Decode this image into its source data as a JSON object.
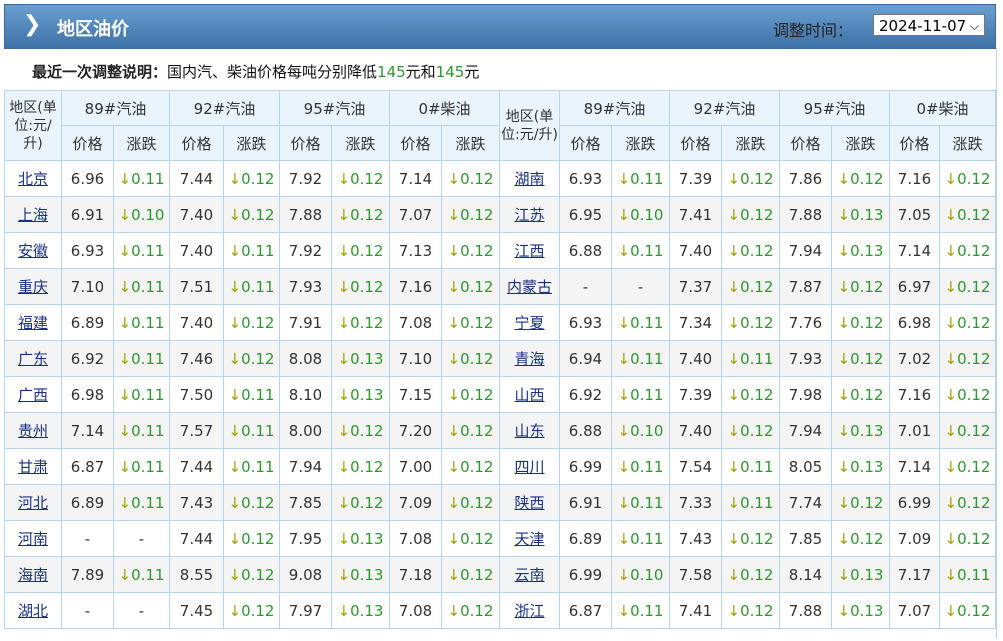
{
  "header": {
    "title": "地区油价",
    "time_label": "调整时间：",
    "date": "2024-11-07"
  },
  "note": {
    "label": "最近一次调整说明：",
    "text1": "国内汽、柴油价格每吨分别降低",
    "gas": "145",
    "text2": "元和",
    "diesel": "145",
    "text3": "元"
  },
  "columns": {
    "region": "地区(单位:元/升)",
    "fuels": [
      "89#汽油",
      "92#汽油",
      "95#汽油",
      "0#柴油"
    ],
    "price": "价格",
    "change": "涨跌"
  },
  "change_arrow": "↓",
  "colors": {
    "header": "#4f84b9",
    "up_down_text": "#2a9a2a",
    "border": "#b8d4ea"
  },
  "rows_left": [
    {
      "city": "北京",
      "v": [
        "6.96",
        "0.11",
        "7.44",
        "0.12",
        "7.92",
        "0.12",
        "7.14",
        "0.12"
      ]
    },
    {
      "city": "上海",
      "v": [
        "6.91",
        "0.10",
        "7.40",
        "0.12",
        "7.88",
        "0.12",
        "7.07",
        "0.12"
      ]
    },
    {
      "city": "安徽",
      "v": [
        "6.93",
        "0.11",
        "7.40",
        "0.11",
        "7.92",
        "0.12",
        "7.13",
        "0.12"
      ]
    },
    {
      "city": "重庆",
      "v": [
        "7.10",
        "0.11",
        "7.51",
        "0.11",
        "7.93",
        "0.12",
        "7.16",
        "0.12"
      ]
    },
    {
      "city": "福建",
      "v": [
        "6.89",
        "0.11",
        "7.40",
        "0.12",
        "7.91",
        "0.12",
        "7.08",
        "0.12"
      ]
    },
    {
      "city": "广东",
      "v": [
        "6.92",
        "0.11",
        "7.46",
        "0.12",
        "8.08",
        "0.13",
        "7.10",
        "0.12"
      ]
    },
    {
      "city": "广西",
      "v": [
        "6.98",
        "0.11",
        "7.50",
        "0.11",
        "8.10",
        "0.13",
        "7.15",
        "0.12"
      ]
    },
    {
      "city": "贵州",
      "v": [
        "7.14",
        "0.11",
        "7.57",
        "0.11",
        "8.00",
        "0.12",
        "7.20",
        "0.12"
      ]
    },
    {
      "city": "甘肃",
      "v": [
        "6.87",
        "0.11",
        "7.44",
        "0.11",
        "7.94",
        "0.12",
        "7.00",
        "0.12"
      ]
    },
    {
      "city": "河北",
      "v": [
        "6.89",
        "0.11",
        "7.43",
        "0.12",
        "7.85",
        "0.12",
        "7.09",
        "0.12"
      ]
    },
    {
      "city": "河南",
      "v": [
        "-",
        "-",
        "7.44",
        "0.12",
        "7.95",
        "0.13",
        "7.08",
        "0.12"
      ]
    },
    {
      "city": "海南",
      "v": [
        "7.89",
        "0.11",
        "8.55",
        "0.12",
        "9.08",
        "0.13",
        "7.18",
        "0.12"
      ]
    },
    {
      "city": "湖北",
      "v": [
        "-",
        "-",
        "7.45",
        "0.12",
        "7.97",
        "0.13",
        "7.08",
        "0.12"
      ]
    }
  ],
  "rows_right": [
    {
      "city": "湖南",
      "v": [
        "6.93",
        "0.11",
        "7.39",
        "0.12",
        "7.86",
        "0.12",
        "7.16",
        "0.12"
      ]
    },
    {
      "city": "江苏",
      "v": [
        "6.95",
        "0.10",
        "7.41",
        "0.12",
        "7.88",
        "0.13",
        "7.05",
        "0.12"
      ]
    },
    {
      "city": "江西",
      "v": [
        "6.88",
        "0.11",
        "7.40",
        "0.12",
        "7.94",
        "0.13",
        "7.14",
        "0.12"
      ]
    },
    {
      "city": "内蒙古",
      "v": [
        "-",
        "-",
        "7.37",
        "0.12",
        "7.87",
        "0.12",
        "6.97",
        "0.12"
      ]
    },
    {
      "city": "宁夏",
      "v": [
        "6.93",
        "0.11",
        "7.34",
        "0.12",
        "7.76",
        "0.12",
        "6.98",
        "0.12"
      ]
    },
    {
      "city": "青海",
      "v": [
        "6.94",
        "0.11",
        "7.40",
        "0.11",
        "7.93",
        "0.12",
        "7.02",
        "0.12"
      ]
    },
    {
      "city": "山西",
      "v": [
        "6.92",
        "0.11",
        "7.39",
        "0.12",
        "7.98",
        "0.12",
        "7.16",
        "0.12"
      ]
    },
    {
      "city": "山东",
      "v": [
        "6.88",
        "0.10",
        "7.40",
        "0.12",
        "7.94",
        "0.13",
        "7.01",
        "0.12"
      ]
    },
    {
      "city": "四川",
      "v": [
        "6.99",
        "0.11",
        "7.54",
        "0.11",
        "8.05",
        "0.13",
        "7.14",
        "0.12"
      ]
    },
    {
      "city": "陕西",
      "v": [
        "6.91",
        "0.11",
        "7.33",
        "0.11",
        "7.74",
        "0.12",
        "6.99",
        "0.12"
      ]
    },
    {
      "city": "天津",
      "v": [
        "6.89",
        "0.11",
        "7.43",
        "0.12",
        "7.85",
        "0.12",
        "7.09",
        "0.12"
      ]
    },
    {
      "city": "云南",
      "v": [
        "6.99",
        "0.10",
        "7.58",
        "0.12",
        "8.14",
        "0.13",
        "7.17",
        "0.11"
      ]
    },
    {
      "city": "浙江",
      "v": [
        "6.87",
        "0.11",
        "7.41",
        "0.12",
        "7.88",
        "0.13",
        "7.07",
        "0.12"
      ]
    }
  ]
}
